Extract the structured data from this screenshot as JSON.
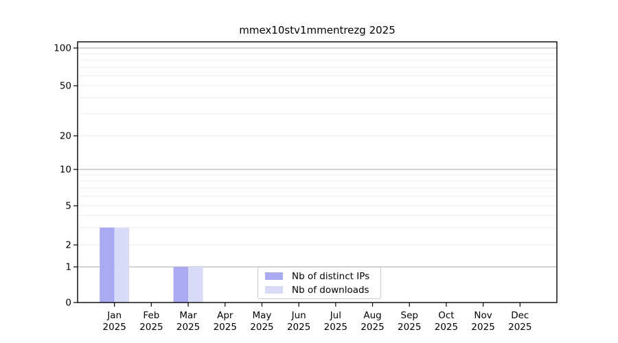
{
  "chart_data": {
    "type": "bar",
    "title": "mmex10stv1mmentrezg 2025",
    "xlabel": "",
    "ylabel": "",
    "categories": [
      "Jan 2025",
      "Feb 2025",
      "Mar 2025",
      "Apr 2025",
      "May 2025",
      "Jun 2025",
      "Jul 2025",
      "Aug 2025",
      "Sep 2025",
      "Oct 2025",
      "Nov 2025",
      "Dec 2025"
    ],
    "series": [
      {
        "name": "Nb of distinct IPs",
        "color": "#aaaaf0",
        "values": [
          3,
          0,
          1,
          0,
          0,
          0,
          0,
          0,
          0,
          0,
          0,
          0
        ]
      },
      {
        "name": "Nb of downloads",
        "color": "#d9d9f8",
        "values": [
          3,
          0,
          1,
          0,
          0,
          0,
          0,
          0,
          0,
          0,
          0,
          0
        ]
      }
    ],
    "yscale": "symlog",
    "yticks": [
      0,
      1,
      2,
      5,
      10,
      20,
      50,
      100
    ],
    "ylim": [
      0,
      110
    ],
    "grid": {
      "major_values": [
        1,
        10,
        100
      ],
      "minor_values": [
        2,
        3,
        4,
        5,
        6,
        7,
        8,
        9,
        20,
        30,
        40,
        50,
        60,
        70,
        80,
        90
      ],
      "major_color": "#b9b9b9",
      "minor_color": "#ededed"
    },
    "axis_color": "#000000",
    "legend": {
      "position": "lower center"
    }
  }
}
